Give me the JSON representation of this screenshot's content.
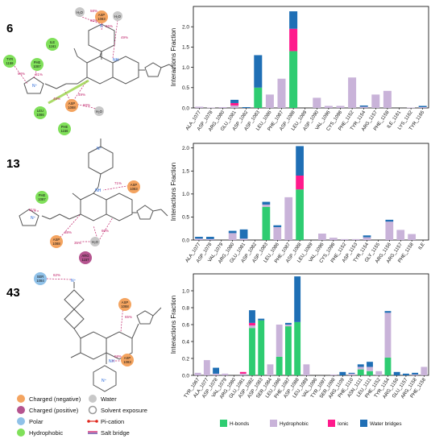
{
  "compounds": [
    "6",
    "13",
    "43"
  ],
  "colors": {
    "H-bonds": "#2ecc71",
    "Hydrophobic": "#c9b3d9",
    "Ionic": "#ff1a8c",
    "Water bridges": "#1f6fb5",
    "negative": "#f4a460",
    "positive": "#b5548f",
    "polar": "#8fc1e8",
    "hydrophobic": "#80e05a",
    "water": "#c8c8c8"
  },
  "molecule_labels": {
    "m6": {
      "residues": [
        {
          "text": "ASP\n1083",
          "kind": "negative"
        },
        {
          "text": "ILE\n1161",
          "kind": "hydrophobic"
        },
        {
          "text": "TYR\n1159",
          "kind": "hydrophobic"
        },
        {
          "text": "PHE\n1087",
          "kind": "hydrophobic"
        },
        {
          "text": "LEU\n1086",
          "kind": "hydrophobic"
        },
        {
          "text": "ASP\n1088",
          "kind": "negative"
        },
        {
          "text": "PHE\n1156",
          "kind": "hydrophobic"
        },
        {
          "text": "H₂O",
          "kind": "water"
        },
        {
          "text": "H₂O",
          "kind": "water"
        },
        {
          "text": "H₂O",
          "kind": "water"
        }
      ],
      "pcts": [
        "58%",
        "60%",
        "55%",
        "49%",
        "94%",
        "81%",
        "49%",
        "49%",
        "60%"
      ]
    },
    "m13": {
      "residues": [
        {
          "text": "ASP\n1083",
          "kind": "negative"
        },
        {
          "text": "PHE\n1087",
          "kind": "hydrophobic"
        },
        {
          "text": "ASP\n1088",
          "kind": "negative"
        },
        {
          "text": "H₂O",
          "kind": "water"
        },
        {
          "text": "ARG\n1157",
          "kind": "positive"
        }
      ],
      "pcts": [
        "71%",
        "81%",
        "38%",
        "60%",
        "35%"
      ]
    },
    "m43": {
      "residues": [
        {
          "text": "SER\n1084",
          "kind": "polar"
        },
        {
          "text": "ASP\n1088",
          "kind": "negative"
        },
        {
          "text": "ASP\n1083",
          "kind": "negative"
        }
      ],
      "pcts": [
        "62%",
        "65%",
        "58%"
      ]
    }
  },
  "legend_bottom": {
    "charged_negative": "Charged (negative)",
    "charged_positive": "Charged (positive)",
    "polar": "Polar",
    "hydrophobic": "Hydrophobic",
    "water": "Water",
    "solvent": "Solvent exposure",
    "pication": "Pi-cation",
    "saltbridge": "Salt bridge"
  },
  "legend_chart": [
    "H-bonds",
    "Hydrophobic",
    "Ionic",
    "Water bridges"
  ],
  "chart_data": [
    {
      "type": "bar",
      "stacked": true,
      "ylabel": "Interactions Fraction",
      "ylim": [
        0,
        2.5
      ],
      "yticks": [
        "0.0",
        "0.5",
        "1.0",
        "1.5",
        "2.0"
      ],
      "categories": [
        "ALA_1077",
        "ASP_1078",
        "ARG_1080",
        "GLU_1081",
        "ASP_1082",
        "ASP_1083",
        "LEU_1086",
        "PHE_1087",
        "ASP_1088",
        "LEU_1089",
        "ASP_1090",
        "VAL_1096",
        "CYS_1098",
        "PHE_1152",
        "TYR_1154",
        "ARG_1157",
        "PHE_1158",
        "ILE_1161",
        "LYS_1162",
        "TYR_1165"
      ],
      "series": [
        {
          "name": "H-bonds",
          "values": [
            0,
            0,
            0,
            0,
            0,
            0.5,
            0,
            0,
            1.4,
            0,
            0,
            0,
            0,
            0,
            0,
            0,
            0,
            0,
            0,
            0
          ]
        },
        {
          "name": "Hydrophobic",
          "values": [
            0.03,
            0.01,
            0.02,
            0.06,
            0,
            0,
            0.33,
            0.72,
            0,
            0,
            0.25,
            0.05,
            0.05,
            0.75,
            0.03,
            0.33,
            0.42,
            0,
            0.01,
            0.02
          ]
        },
        {
          "name": "Ionic",
          "values": [
            0,
            0,
            0,
            0.06,
            0,
            0,
            0,
            0,
            0.55,
            0,
            0,
            0,
            0,
            0,
            0,
            0,
            0,
            0,
            0,
            0
          ]
        },
        {
          "name": "Water bridges",
          "values": [
            0,
            0,
            0,
            0.08,
            0.02,
            0.8,
            0,
            0,
            0.43,
            0,
            0,
            0,
            0,
            0,
            0.03,
            0,
            0,
            0,
            0,
            0.03
          ]
        }
      ]
    },
    {
      "type": "bar",
      "stacked": true,
      "ylabel": "Interactions Fraction",
      "ylim": [
        0,
        2.1
      ],
      "yticks": [
        "0.0",
        "0.5",
        "1.0",
        "1.5",
        "2.0"
      ],
      "categories": [
        "ALA_1077",
        "ASP_1078",
        "VAL_1079",
        "ARG_1080",
        "GLU_1081",
        "ASP_1082",
        "ASP_1083",
        "LEU_1086",
        "PHE_1087",
        "ASP_1088",
        "LEU_1089",
        "VAL_1096",
        "CYS_1098",
        "PHE_1152",
        "ASP_1153",
        "TYR_1154",
        "GLY_1155",
        "ARG_1156",
        "ARG_1157",
        "PHE_1158",
        "ILE"
      ],
      "series": [
        {
          "name": "H-bonds",
          "values": [
            0,
            0,
            0,
            0,
            0,
            0,
            0.72,
            0,
            0,
            1.1,
            0,
            0,
            0,
            0,
            0,
            0,
            0,
            0,
            0,
            0,
            0
          ]
        },
        {
          "name": "Hydrophobic",
          "values": [
            0.03,
            0.02,
            0,
            0.15,
            0.03,
            0,
            0.05,
            0.28,
            0.93,
            0,
            0,
            0.14,
            0.05,
            0.02,
            0.02,
            0.06,
            0,
            0.4,
            0.22,
            0.13,
            0
          ]
        },
        {
          "name": "Ionic",
          "values": [
            0,
            0,
            0,
            0,
            0,
            0,
            0,
            0,
            0,
            0.3,
            0,
            0,
            0,
            0,
            0,
            0,
            0,
            0,
            0,
            0,
            0
          ]
        },
        {
          "name": "Water bridges",
          "values": [
            0.04,
            0.05,
            0,
            0.05,
            0.2,
            0,
            0.06,
            0.04,
            0,
            0.64,
            0,
            0,
            0,
            0,
            0,
            0.04,
            0,
            0.04,
            0,
            0,
            0
          ]
        }
      ]
    },
    {
      "type": "bar",
      "stacked": true,
      "ylabel": "Interactions Fraction",
      "ylim": [
        0,
        1.2
      ],
      "yticks": [
        "0.0",
        "0.2",
        "0.4",
        "0.6",
        "0.8",
        "1.0"
      ],
      "categories": [
        "TYR_1067",
        "ALA_1077",
        "ASP_1078",
        "VAL_1079",
        "ARG_1080",
        "GLU_1081",
        "ASP_1082",
        "ASP_1083",
        "SER_1084",
        "LEU_1086",
        "PHE_1087",
        "ASP_1088",
        "LEU_1089",
        "VAL_1096",
        "TYR_1097",
        "SER_1098",
        "ARG_1109",
        "PHE_1110",
        "ASN_1111",
        "LEU_1111",
        "PHE_1152",
        "TYR_1154",
        "ARG_1156",
        "GLU_1157",
        "ARG_1158",
        "PHE_1158"
      ],
      "series": [
        {
          "name": "H-bonds",
          "values": [
            0,
            0,
            0,
            0,
            0,
            0,
            0.56,
            0.65,
            0,
            0.22,
            0.58,
            0.63,
            0,
            0,
            0,
            0,
            0,
            0,
            0.07,
            0.05,
            0,
            0.21,
            0,
            0,
            0,
            0
          ]
        },
        {
          "name": "Hydrophobic",
          "values": [
            0.03,
            0.18,
            0.02,
            0.02,
            0,
            0.02,
            0.03,
            0,
            0.13,
            0.38,
            0.02,
            0,
            0.13,
            0,
            0,
            0.01,
            0,
            0.02,
            0.03,
            0.05,
            0.05,
            0.53,
            0,
            0,
            0.01,
            0.1
          ]
        },
        {
          "name": "Ionic",
          "values": [
            0,
            0,
            0,
            0,
            0,
            0.02,
            0.03,
            0,
            0,
            0,
            0,
            0,
            0,
            0,
            0,
            0,
            0,
            0,
            0,
            0,
            0,
            0,
            0,
            0,
            0,
            0
          ]
        },
        {
          "name": "Water bridges",
          "values": [
            0,
            0,
            0.07,
            0,
            0,
            0,
            0.15,
            0.02,
            0,
            0,
            0.02,
            0.54,
            0,
            0,
            0,
            0,
            0.04,
            0.01,
            0.03,
            0.06,
            0,
            0.02,
            0.04,
            0.02,
            0.02,
            0
          ]
        }
      ]
    }
  ]
}
